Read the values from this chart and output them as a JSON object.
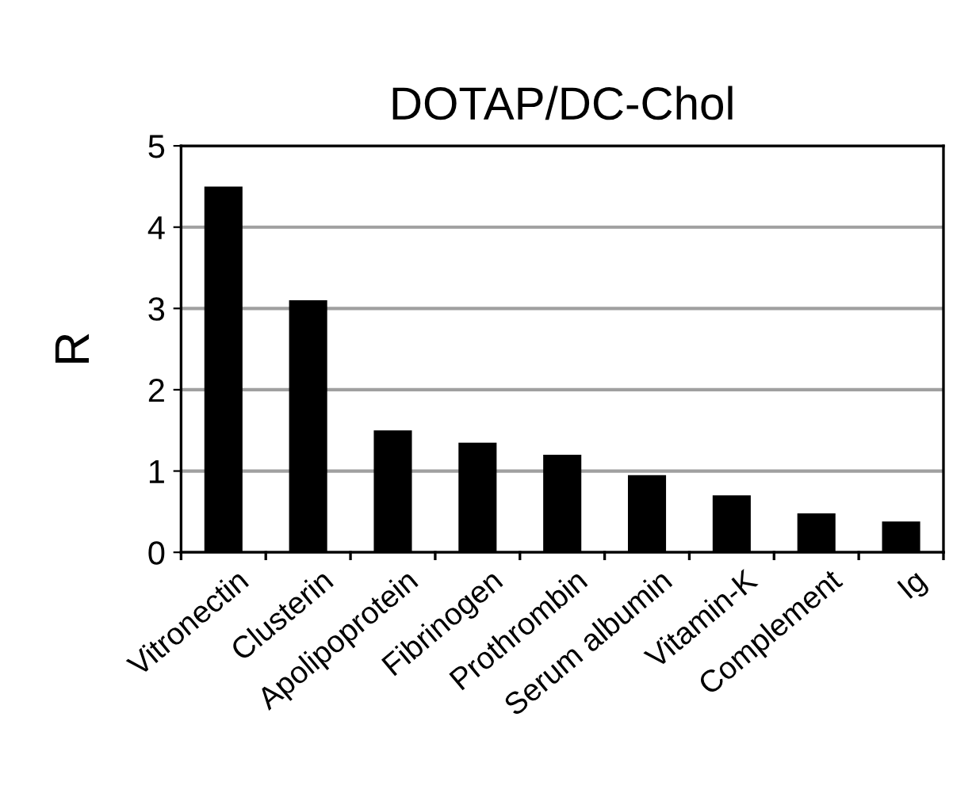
{
  "chart_data": {
    "type": "bar",
    "title": "DOTAP/DC-Chol",
    "ylabel": "R",
    "categories": [
      "Vitronectin",
      "Clusterin",
      "Apolipoprotein",
      "Fibrinogen",
      "Prothrombin",
      "Serum albumin",
      "Vitamin-K",
      "Complement",
      "Ig"
    ],
    "values": [
      4.5,
      3.1,
      1.5,
      1.35,
      1.2,
      0.95,
      0.7,
      0.48,
      0.38
    ],
    "color": "#000000",
    "ylim": [
      0,
      5
    ],
    "yticks": [
      0,
      1,
      2,
      3,
      4,
      5
    ],
    "grid": "y"
  }
}
